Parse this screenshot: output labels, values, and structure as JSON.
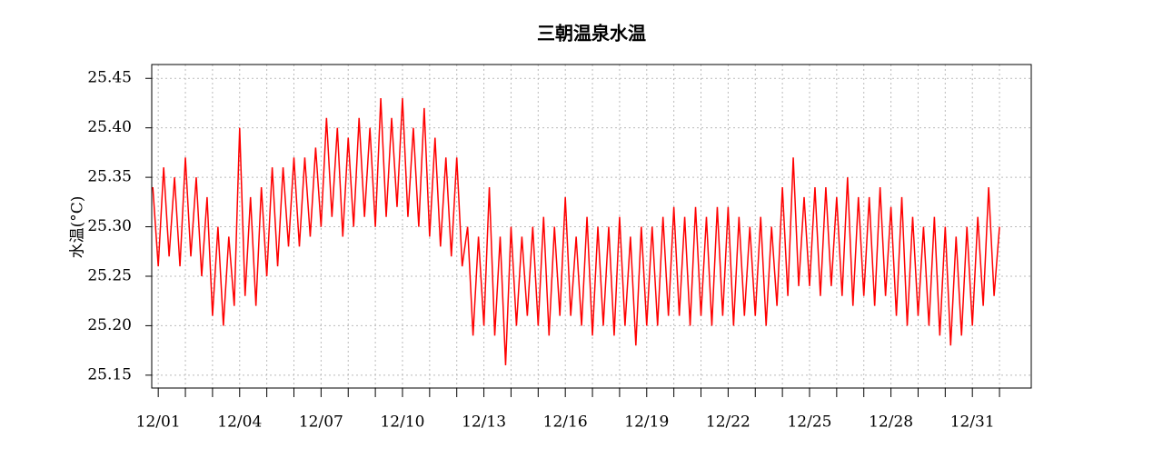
{
  "chart_data": {
    "type": "line",
    "title": "三朝温泉水温",
    "ylabel": "水温(°C)",
    "x": [
      0.8,
      1.0,
      1.2,
      1.4,
      1.6,
      1.8,
      2.0,
      2.2,
      2.4,
      2.6,
      2.8,
      3.0,
      3.2,
      3.4,
      3.6,
      3.8,
      4.0,
      4.2,
      4.4,
      4.6,
      4.8,
      5.0,
      5.2,
      5.4,
      5.6,
      5.8,
      6.0,
      6.2,
      6.4,
      6.6,
      6.8,
      7.0,
      7.2,
      7.4,
      7.6,
      7.8,
      8.0,
      8.2,
      8.4,
      8.6,
      8.8,
      9.0,
      9.2,
      9.4,
      9.6,
      9.8,
      10.0,
      10.2,
      10.4,
      10.6,
      10.8,
      11.0,
      11.2,
      11.4,
      11.6,
      11.8,
      12.0,
      12.2,
      12.4,
      12.6,
      12.8,
      13.0,
      13.2,
      13.4,
      13.6,
      13.8,
      14.0,
      14.2,
      14.4,
      14.6,
      14.8,
      15.0,
      15.2,
      15.4,
      15.6,
      15.8,
      16.0,
      16.2,
      16.4,
      16.6,
      16.8,
      17.0,
      17.2,
      17.4,
      17.6,
      17.8,
      18.0,
      18.2,
      18.4,
      18.6,
      18.8,
      19.0,
      19.2,
      19.4,
      19.6,
      19.8,
      20.0,
      20.2,
      20.4,
      20.6,
      20.8,
      21.0,
      21.2,
      21.4,
      21.6,
      21.8,
      22.0,
      22.2,
      22.4,
      22.6,
      22.8,
      23.0,
      23.2,
      23.4,
      23.6,
      23.8,
      24.0,
      24.2,
      24.4,
      24.6,
      24.8,
      25.0,
      25.2,
      25.4,
      25.6,
      25.8,
      26.0,
      26.2,
      26.4,
      26.6,
      26.8,
      27.0,
      27.2,
      27.4,
      27.6,
      27.8,
      28.0,
      28.2,
      28.4,
      28.6,
      28.8,
      29.0,
      29.2,
      29.4,
      29.6,
      29.8,
      30.0,
      30.2,
      30.4,
      30.6,
      30.8,
      31.0,
      31.2,
      31.4,
      31.6,
      31.8,
      32.0
    ],
    "series": [
      {
        "color": "#ff0000",
        "values": [
          25.34,
          25.26,
          25.36,
          25.27,
          25.35,
          25.26,
          25.37,
          25.27,
          25.35,
          25.25,
          25.33,
          25.21,
          25.3,
          25.2,
          25.29,
          25.22,
          25.4,
          25.23,
          25.33,
          25.22,
          25.34,
          25.25,
          25.36,
          25.26,
          25.36,
          25.28,
          25.37,
          25.28,
          25.37,
          25.29,
          25.38,
          25.3,
          25.41,
          25.31,
          25.4,
          25.29,
          25.39,
          25.3,
          25.41,
          25.31,
          25.4,
          25.3,
          25.43,
          25.31,
          25.41,
          25.32,
          25.43,
          25.31,
          25.4,
          25.3,
          25.42,
          25.29,
          25.39,
          25.28,
          25.37,
          25.27,
          25.37,
          25.26,
          25.3,
          25.19,
          25.29,
          25.2,
          25.34,
          25.19,
          25.29,
          25.16,
          25.3,
          25.2,
          25.29,
          25.21,
          25.3,
          25.2,
          25.31,
          25.19,
          25.3,
          25.21,
          25.33,
          25.21,
          25.29,
          25.2,
          25.31,
          25.19,
          25.3,
          25.2,
          25.3,
          25.19,
          25.31,
          25.2,
          25.29,
          25.18,
          25.3,
          25.2,
          25.3,
          25.2,
          25.31,
          25.21,
          25.32,
          25.21,
          25.31,
          25.2,
          25.32,
          25.21,
          25.31,
          25.2,
          25.32,
          25.21,
          25.32,
          25.2,
          25.31,
          25.21,
          25.3,
          25.21,
          25.31,
          25.2,
          25.3,
          25.22,
          25.34,
          25.23,
          25.37,
          25.24,
          25.33,
          25.24,
          25.34,
          25.23,
          25.34,
          25.24,
          25.33,
          25.23,
          25.35,
          25.22,
          25.33,
          25.23,
          25.33,
          25.22,
          25.34,
          25.23,
          25.32,
          25.21,
          25.33,
          25.2,
          25.31,
          25.21,
          25.3,
          25.2,
          25.31,
          25.19,
          25.3,
          25.18,
          25.29,
          25.19,
          25.3,
          25.2,
          25.31,
          25.22,
          25.34,
          25.23,
          25.3
        ]
      }
    ],
    "xlim": [
      0.76,
      33.17
    ],
    "xticks": [
      {
        "value": 1,
        "label": "12/01"
      },
      {
        "value": 4,
        "label": "12/04"
      },
      {
        "value": 7,
        "label": "12/07"
      },
      {
        "value": 10,
        "label": "12/10"
      },
      {
        "value": 13,
        "label": "12/13"
      },
      {
        "value": 16,
        "label": "12/16"
      },
      {
        "value": 19,
        "label": "12/19"
      },
      {
        "value": 22,
        "label": "12/22"
      },
      {
        "value": 25,
        "label": "12/25"
      },
      {
        "value": 28,
        "label": "12/28"
      },
      {
        "value": 31,
        "label": "12/31"
      }
    ],
    "xminorticks": [
      1,
      2,
      3,
      4,
      5,
      6,
      7,
      8,
      9,
      10,
      11,
      12,
      13,
      14,
      15,
      16,
      17,
      18,
      19,
      20,
      21,
      22,
      23,
      24,
      25,
      26,
      27,
      28,
      29,
      30,
      31,
      32
    ],
    "ylim": [
      25.137,
      25.464
    ],
    "yticks": [
      25.15,
      {
        "value": 25.2,
        "label": "25.20"
      },
      25.25,
      {
        "value": 25.3,
        "label": "25.30"
      },
      25.35,
      {
        "value": 25.4,
        "label": "25.40"
      },
      25.45
    ],
    "grid": true
  }
}
